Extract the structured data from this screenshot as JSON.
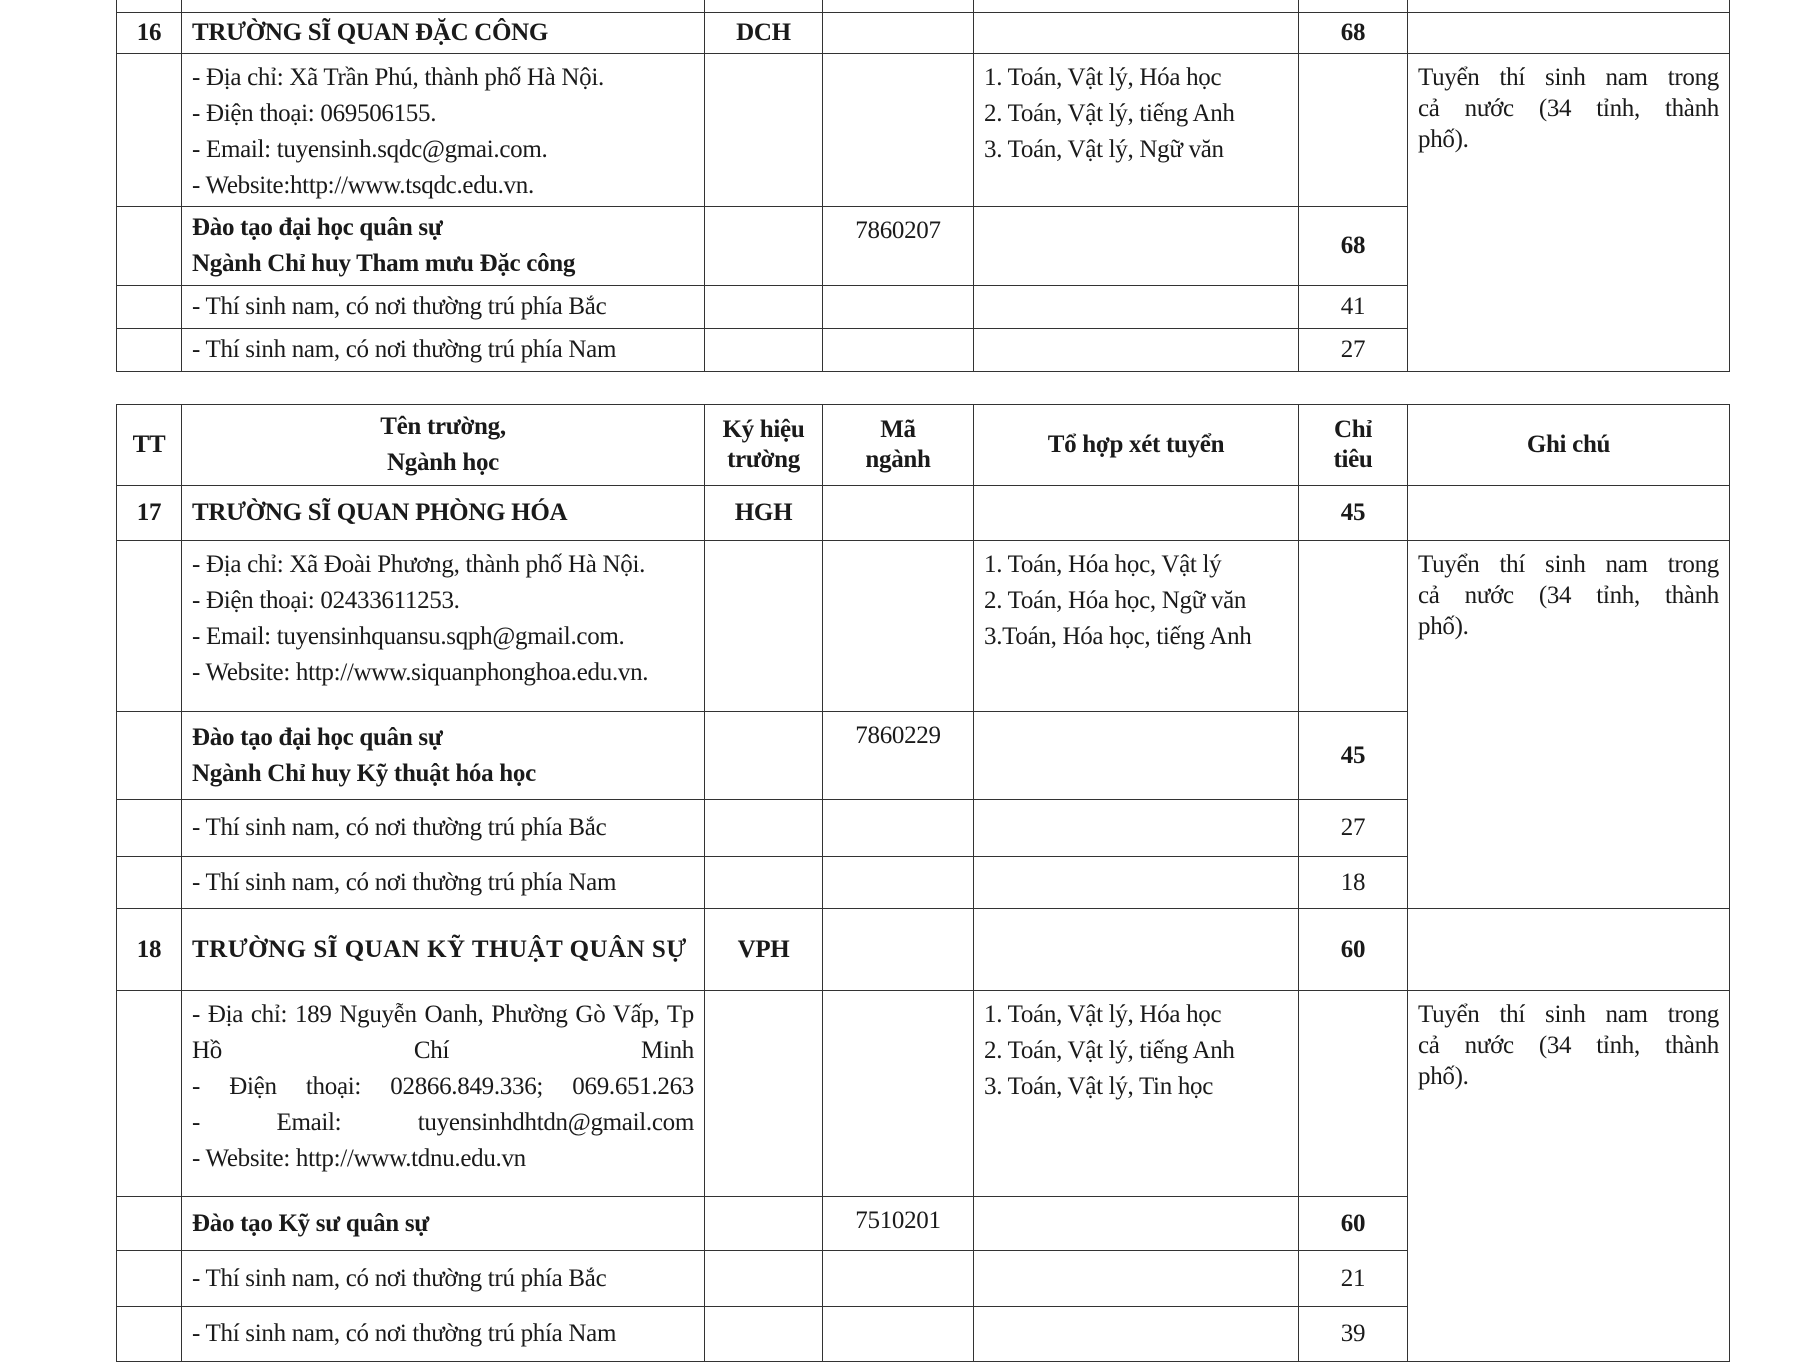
{
  "header": {
    "tt": "TT",
    "name": [
      "Tên trường,",
      "Ngành học"
    ],
    "school_code": [
      "Ký hiệu",
      "trường"
    ],
    "major_code": [
      "Mã",
      "ngành"
    ],
    "subjects": "Tổ hợp xét tuyển",
    "quota": [
      "Chỉ",
      "tiêu"
    ],
    "note": "Ghi chú"
  },
  "schools": [
    {
      "tt": "16",
      "name": [
        "TRƯỜNG SĨ QUAN ĐẶC CÔNG"
      ],
      "code": "DCH",
      "quota": "68",
      "info": [
        "- Địa chỉ: Xã Trần Phú, thành phố Hà Nội.",
        "- Điện thoại: 069506155.",
        "- Email: tuyensinh.sqdc@gmai.com.",
        "- Website:http://www.tsqdc.edu.vn."
      ],
      "subjects": [
        "1. Toán, Vật lý, Hóa học",
        "2. Toán, Vật lý, tiếng Anh",
        "3. Toán, Vật lý, Ngữ văn"
      ],
      "note": "Tuyển thí sinh nam trong cả nước (34 tỉnh, thành phố).",
      "program": [
        "Đào tạo đại học quân sự",
        "Ngành Chỉ huy Tham mưu Đặc công"
      ],
      "major_code": "7860207",
      "program_quota": "68",
      "quotas": [
        {
          "label": "- Thí sinh nam, có nơi thường trú phía Bắc",
          "value": "41"
        },
        {
          "label": "- Thí sinh nam, có nơi thường trú phía Nam",
          "value": "27"
        }
      ]
    },
    {
      "tt": "17",
      "name": [
        "TRƯỜNG SĨ QUAN PHÒNG HÓA"
      ],
      "code": "HGH",
      "quota": "45",
      "info": [
        "- Địa chỉ: Xã Đoài Phương, thành phố Hà Nội.",
        "- Điện thoại: 02433611253.",
        "- Email: tuyensinhquansu.sqph@gmail.com.",
        "- Website: http://www.siquanphonghoa.edu.vn."
      ],
      "subjects": [
        "1. Toán, Hóa học, Vật lý",
        "2. Toán, Hóa học, Ngữ văn",
        "3.Toán, Hóa học, tiếng Anh"
      ],
      "note": "Tuyển thí sinh nam trong cả nước (34 tỉnh, thành phố).",
      "program": [
        "Đào tạo đại học quân sự",
        "Ngành Chỉ huy Kỹ thuật hóa học"
      ],
      "major_code": "7860229",
      "program_quota": "45",
      "quotas": [
        {
          "label": "- Thí sinh nam, có nơi thường trú phía Bắc",
          "value": "27"
        },
        {
          "label": "- Thí sinh nam, có nơi thường trú phía Nam",
          "value": "18"
        }
      ]
    },
    {
      "tt": "18",
      "name": [
        "TRƯỜNG SĨ QUAN KỸ THUẬT QUÂN SỰ"
      ],
      "code": "VPH",
      "quota": "60",
      "info": [
        "- Địa chỉ: 189 Nguyễn Oanh, Phường Gò Vấp, Tp Hồ Chí Minh",
        "- Điện thoại: 02866.849.336; 069.651.263",
        "- Email: tuyensinhdhtdn@gmail.com",
        "- Website: http://www.tdnu.edu.vn"
      ],
      "subjects": [
        "1. Toán, Vật lý, Hóa học",
        "2. Toán, Vật lý, tiếng Anh",
        "3. Toán, Vật lý, Tin học"
      ],
      "note": "Tuyển thí sinh nam trong cả nước (34 tỉnh, thành phố).",
      "program": [
        "Đào tạo Kỹ sư quân sự"
      ],
      "major_code": "7510201",
      "program_quota": "60",
      "quotas": [
        {
          "label": "- Thí sinh nam, có nơi thường trú phía Bắc",
          "value": "21"
        },
        {
          "label": "- Thí sinh nam, có nơi thường trú phía Nam",
          "value": "39"
        }
      ]
    }
  ]
}
